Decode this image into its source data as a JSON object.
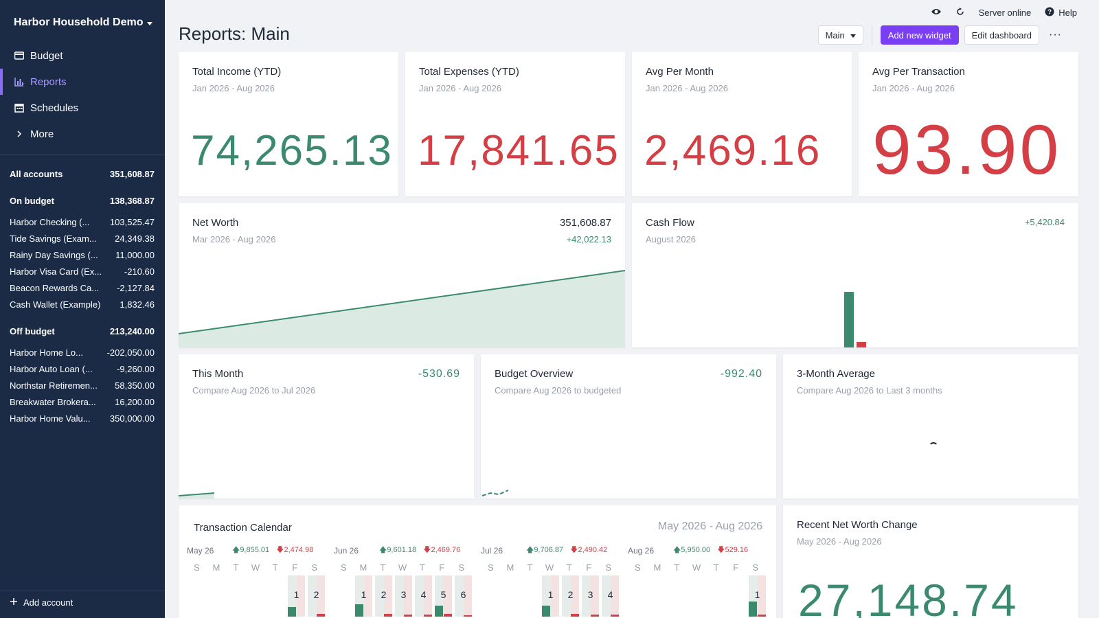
{
  "sidebar": {
    "budget_name": "Harbor Household Demo",
    "nav": [
      {
        "label": "Budget",
        "icon": "wallet-icon"
      },
      {
        "label": "Reports",
        "icon": "bar-chart-icon"
      },
      {
        "label": "Schedules",
        "icon": "calendar-icon"
      },
      {
        "label": "More",
        "icon": "chevron-right-icon"
      }
    ],
    "all_accounts": {
      "label": "All accounts",
      "value": "351,608.87"
    },
    "on_budget": {
      "label": "On budget",
      "value": "138,368.87"
    },
    "on_budget_accounts": [
      {
        "name": "Harbor Checking (...",
        "value": "103,525.47"
      },
      {
        "name": "Tide Savings (Exam...",
        "value": "24,349.38"
      },
      {
        "name": "Rainy Day Savings (...",
        "value": "11,000.00"
      },
      {
        "name": "Harbor Visa Card (Ex...",
        "value": "-210.60"
      },
      {
        "name": "Beacon Rewards Ca...",
        "value": "-2,127.84"
      },
      {
        "name": "Cash Wallet (Example)",
        "value": "1,832.46"
      }
    ],
    "off_budget": {
      "label": "Off budget",
      "value": "213,240.00"
    },
    "off_budget_accounts": [
      {
        "name": "Harbor Home Lo...",
        "value": "-202,050.00"
      },
      {
        "name": "Harbor Auto Loan (...",
        "value": "-9,260.00"
      },
      {
        "name": "Northstar Retiremen...",
        "value": "58,350.00"
      },
      {
        "name": "Breakwater Brokera...",
        "value": "16,200.00"
      },
      {
        "name": "Harbor Home Valu...",
        "value": "350,000.00"
      }
    ],
    "add_account": "Add account"
  },
  "topbar": {
    "server_status": "Server online",
    "help": "Help"
  },
  "page": {
    "title": "Reports: Main",
    "dashboard_select": "Main",
    "add_widget": "Add new widget",
    "edit_dashboard": "Edit dashboard",
    "more": "···"
  },
  "cards": {
    "income": {
      "title": "Total Income (YTD)",
      "sub": "Jan 2026 - Aug 2026",
      "value": "74,265.13"
    },
    "expenses": {
      "title": "Total Expenses (YTD)",
      "sub": "Jan 2026 - Aug 2026",
      "value": "17,841.65"
    },
    "avg_month": {
      "title": "Avg Per Month",
      "sub": "Jan 2026 - Aug 2026",
      "value": "2,469.16"
    },
    "avg_txn": {
      "title": "Avg Per Transaction",
      "sub": "Jan 2026 - Aug 2026",
      "value": "93.90"
    },
    "net_worth": {
      "title": "Net Worth",
      "sub": "Mar 2026 - Aug 2026",
      "value": "351,608.87",
      "change": "+42,022.13"
    },
    "cash_flow": {
      "title": "Cash Flow",
      "sub": "August 2026",
      "change": "+5,420.84"
    },
    "this_month": {
      "title": "This Month",
      "sub": "Compare Aug 2026 to Jul 2026",
      "value": "-530.69"
    },
    "budget_overview": {
      "title": "Budget Overview",
      "sub": "Compare Aug 2026 to budgeted",
      "value": "-992.40"
    },
    "three_month": {
      "title": "3-Month Average",
      "sub": "Compare Aug 2026 to Last 3 months"
    },
    "calendar": {
      "title": "Transaction Calendar",
      "range": "May 2026 - Aug 2026"
    },
    "recent_nw": {
      "title": "Recent Net Worth Change",
      "sub": "May 2026 - Aug 2026",
      "value": "27,148.74"
    }
  },
  "calendar_months": [
    {
      "label": "May 26",
      "income": "9,855.01",
      "expense": "2,474.98",
      "offset": 5,
      "days": 2
    },
    {
      "label": "Jun 26",
      "income": "9,601.18",
      "expense": "2,469.76",
      "offset": 1,
      "days": 6
    },
    {
      "label": "Jul 26",
      "income": "9,706.87",
      "expense": "2,490.42",
      "offset": 3,
      "days": 4
    },
    {
      "label": "Aug 26",
      "income": "5,950.00",
      "expense": "529.16",
      "offset": 6,
      "days": 1
    }
  ],
  "weekdays": [
    "S",
    "M",
    "T",
    "W",
    "T",
    "F",
    "S"
  ],
  "colors": {
    "sidebar": "#1b2b46",
    "accent": "#7a3ff2",
    "positive": "#3b8a6e",
    "negative": "#d43f46"
  }
}
